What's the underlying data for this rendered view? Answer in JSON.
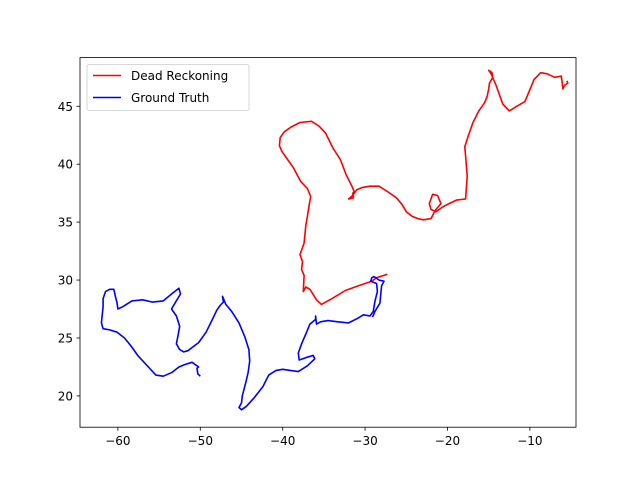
{
  "chart_data": {
    "type": "line",
    "title": "",
    "xlabel": "",
    "ylabel": "",
    "xlim": [
      -64.6,
      -4.4
    ],
    "ylim": [
      17.3,
      49.2
    ],
    "xticks": [
      -60,
      -50,
      -40,
      -30,
      -20,
      -10
    ],
    "yticks": [
      20,
      25,
      30,
      35,
      40,
      45
    ],
    "xtick_labels": [
      "−60",
      "−50",
      "−40",
      "−30",
      "−20",
      "−10"
    ],
    "ytick_labels": [
      "20",
      "25",
      "30",
      "35",
      "40",
      "45"
    ],
    "grid": false,
    "legend_position": "upper-left",
    "series": [
      {
        "name": "Dead Reckoning",
        "color": "#ff0000",
        "x": [
          -27.3,
          -28.6,
          -29.2,
          -30.8,
          -32.4,
          -34.0,
          -35.3,
          -35.9,
          -36.7,
          -37.2,
          -37.5,
          -37.4,
          -37.7,
          -37.6,
          -37.9,
          -37.4,
          -37.2,
          -37.0,
          -36.8,
          -36.6,
          -37.0,
          -37.8,
          -38.7,
          -39.5,
          -40.1,
          -40.4,
          -40.3,
          -39.8,
          -39.0,
          -37.9,
          -36.5,
          -35.6,
          -34.8,
          -33.9,
          -33.0,
          -32.3,
          -31.6,
          -31.3,
          -31.5,
          -31.4,
          -32.0,
          -31.5,
          -31.0,
          -30.3,
          -29.4,
          -28.3,
          -27.2,
          -26.2,
          -25.5,
          -25.0,
          -24.3,
          -23.6,
          -22.9,
          -22.0,
          -21.5,
          -20.8,
          -21.2,
          -21.8,
          -22.2,
          -22.0,
          -21.4,
          -20.6,
          -19.8,
          -18.9,
          -17.8,
          -17.6,
          -17.8,
          -17.9,
          -17.5,
          -16.9,
          -16.2,
          -15.5,
          -15.2,
          -15.0,
          -14.9,
          -14.5,
          -14.6,
          -15.0,
          -14.7,
          -14.1,
          -13.3,
          -12.5,
          -11.6,
          -10.6,
          -9.9,
          -9.5,
          -8.7,
          -7.9,
          -7.0,
          -6.2,
          -6.1,
          -6.0,
          -5.8,
          -5.4,
          -5.5
        ],
        "y": [
          30.5,
          30.2,
          29.9,
          29.5,
          29.1,
          28.4,
          27.9,
          28.3,
          29.2,
          29.4,
          29.0,
          30.4,
          30.9,
          31.6,
          32.2,
          33.2,
          34.7,
          35.5,
          36.4,
          37.2,
          37.9,
          38.5,
          39.7,
          40.5,
          41.1,
          41.6,
          42.3,
          42.8,
          43.2,
          43.6,
          43.7,
          43.3,
          42.7,
          41.4,
          40.4,
          39.1,
          38.1,
          37.6,
          37.5,
          37.1,
          37.0,
          37.3,
          37.8,
          38.0,
          38.1,
          38.1,
          37.6,
          37.1,
          36.5,
          35.9,
          35.5,
          35.3,
          35.2,
          35.3,
          36.0,
          36.6,
          37.3,
          37.4,
          36.6,
          36.1,
          35.9,
          36.3,
          36.6,
          36.9,
          37.0,
          39.0,
          40.7,
          41.5,
          42.4,
          43.6,
          44.6,
          45.3,
          45.8,
          46.5,
          47.0,
          47.5,
          47.9,
          48.1,
          47.8,
          46.8,
          45.2,
          44.6,
          45.0,
          45.4,
          46.6,
          47.3,
          47.9,
          47.8,
          47.5,
          47.6,
          47.2,
          46.5,
          46.8,
          47.0,
          47.2
        ]
      },
      {
        "name": "Ground Truth",
        "color": "#0000ff",
        "x": [
          -50.0,
          -50.3,
          -50.4,
          -50.2,
          -51.0,
          -51.9,
          -52.6,
          -53.5,
          -54.5,
          -55.4,
          -56.3,
          -57.6,
          -58.4,
          -59.2,
          -60.1,
          -61.0,
          -61.8,
          -62.0,
          -61.8,
          -61.8,
          -61.5,
          -61.0,
          -60.5,
          -60.3,
          -60.1,
          -60.0,
          -59.4,
          -58.3,
          -57.0,
          -55.8,
          -54.5,
          -53.3,
          -52.6,
          -52.4,
          -53.0,
          -53.5,
          -52.9,
          -52.5,
          -52.7,
          -52.9,
          -52.5,
          -52.0,
          -51.5,
          -50.2,
          -49.3,
          -48.6,
          -48.0,
          -47.6,
          -47.2,
          -47.3,
          -46.9,
          -46.2,
          -45.3,
          -44.6,
          -44.1,
          -44.0,
          -44.2,
          -44.5,
          -44.9,
          -45.0,
          -45.3,
          -45.0,
          -44.4,
          -43.5,
          -42.4,
          -41.7,
          -40.8,
          -40.0,
          -39.1,
          -38.1,
          -37.0,
          -36.1,
          -36.3,
          -37.2,
          -38.0,
          -38.1,
          -37.7,
          -37.1,
          -36.7,
          -36.0,
          -36.0,
          -35.9,
          -35.4,
          -34.5,
          -33.3,
          -32.0,
          -30.9,
          -30.2,
          -29.4,
          -29.0,
          -28.8,
          -28.5,
          -28.6,
          -29.3,
          -29.2,
          -28.9,
          -28.3,
          -27.7,
          -28.0,
          -28.2,
          -28.8,
          -29.1
        ],
        "y": [
          21.7,
          21.9,
          22.4,
          22.5,
          22.9,
          22.7,
          22.5,
          22.0,
          21.7,
          21.8,
          22.5,
          23.5,
          24.3,
          25.0,
          25.5,
          25.7,
          25.8,
          26.3,
          27.7,
          28.4,
          29.0,
          29.2,
          29.2,
          28.6,
          28.0,
          27.5,
          27.7,
          28.2,
          28.3,
          28.1,
          28.2,
          28.9,
          29.3,
          28.8,
          28.1,
          27.5,
          26.9,
          26.0,
          25.2,
          24.5,
          24.0,
          23.8,
          23.9,
          24.6,
          25.5,
          26.5,
          27.4,
          27.8,
          28.1,
          28.6,
          27.9,
          27.3,
          26.3,
          25.1,
          24.0,
          23.0,
          22.0,
          21.1,
          20.0,
          19.4,
          19.0,
          18.8,
          19.1,
          19.8,
          20.8,
          21.8,
          22.2,
          22.3,
          22.2,
          22.1,
          22.6,
          23.2,
          23.5,
          23.3,
          23.1,
          23.7,
          24.5,
          25.5,
          26.2,
          26.6,
          26.9,
          26.2,
          26.4,
          26.5,
          26.4,
          26.3,
          26.7,
          27.0,
          26.9,
          27.3,
          28.2,
          29.0,
          29.7,
          29.9,
          30.2,
          30.3,
          30.0,
          29.9,
          29.5,
          28.0,
          27.3,
          26.8
        ]
      }
    ]
  }
}
